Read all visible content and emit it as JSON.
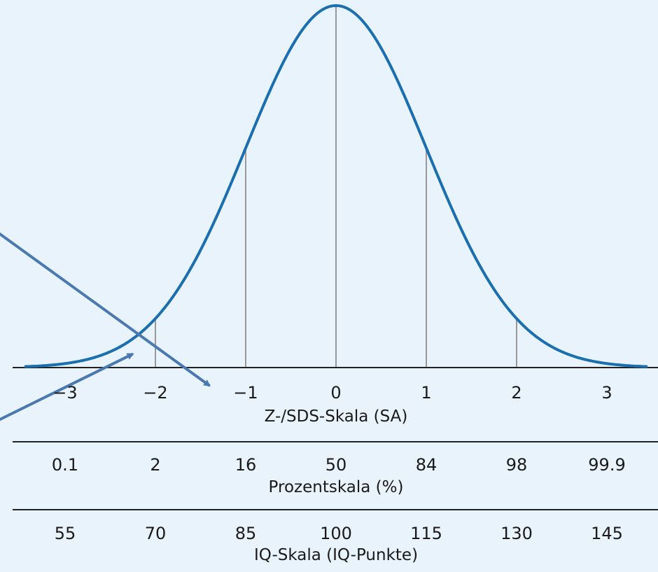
{
  "colors": {
    "background": "#e9f3fb",
    "curve": "#1a6fb0",
    "arrow": "#4a78b0",
    "axis": "#222222",
    "gridline": "#999999"
  },
  "chart_data": {
    "type": "line",
    "title": "",
    "series": [
      {
        "name": "",
        "function": "standard normal density",
        "x_range": [
          -3.5,
          3.5
        ]
      }
    ],
    "vertical_lines_at": [
      -2,
      -1,
      0,
      1,
      2
    ],
    "axes": [
      {
        "id": "z",
        "label": "Z-/SDS-Skala (SA)",
        "ticks": [
          "−3",
          "−2",
          "−1",
          "0",
          "1",
          "2",
          "3"
        ],
        "values": [
          -3,
          -2,
          -1,
          0,
          1,
          2,
          3
        ]
      },
      {
        "id": "pct",
        "label": "Prozentskala (%)",
        "ticks": [
          "0.1",
          "2",
          "16",
          "50",
          "84",
          "98",
          "99.9"
        ],
        "values": [
          -3,
          -2,
          -1,
          0,
          1,
          2,
          3
        ]
      },
      {
        "id": "iq",
        "label": "IQ-Skala (IQ-Punkte)",
        "ticks": [
          "55",
          "70",
          "85",
          "100",
          "115",
          "130",
          "145"
        ],
        "values": [
          -3,
          -2,
          -1,
          0,
          1,
          2,
          3
        ]
      }
    ],
    "arrows": [
      {
        "from": "out-left-upper",
        "to_x": -1.4,
        "to_y": -0.02
      },
      {
        "from": "out-left-lower",
        "to_x": -2.25,
        "to_y": 0.015
      }
    ],
    "grid": false,
    "legend": "none"
  }
}
